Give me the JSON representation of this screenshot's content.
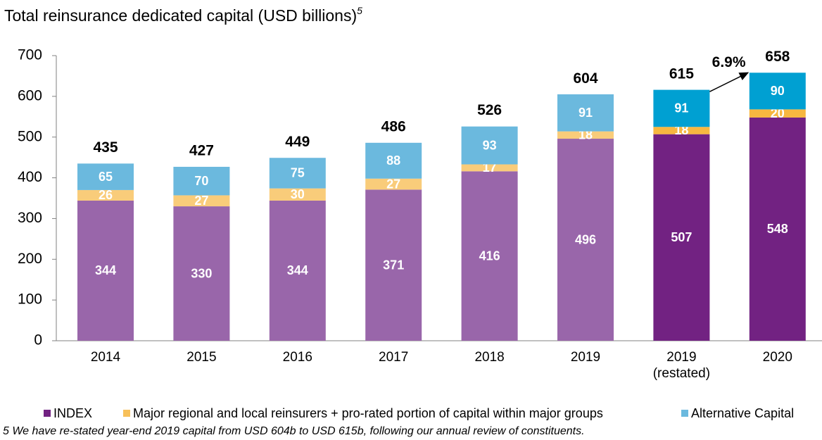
{
  "chart_data": {
    "type": "stacked_bar",
    "title": "Total reinsurance dedicated capital (USD billions)",
    "title_note": "5",
    "categories": [
      "2014",
      "2015",
      "2016",
      "2017",
      "2018",
      "2019",
      "2019 (restated)",
      "2020"
    ],
    "series": [
      {
        "name": "INDEX",
        "color": "#722282",
        "bar_colors": [
          "#9966aa",
          "#9966aa",
          "#9966aa",
          "#9966aa",
          "#9966aa",
          "#9966aa",
          "#722282",
          "#722282"
        ],
        "values": [
          344,
          330,
          344,
          371,
          416,
          496,
          507,
          548
        ]
      },
      {
        "name": "Major regional and local reinsurers + pro-rated portion of capital within major groups",
        "color": "#f7c05a",
        "bar_colors": [
          "#f9cc7a",
          "#f9cc7a",
          "#f9cc7a",
          "#f9cc7a",
          "#f9cc7a",
          "#f9cc7a",
          "#f7b740",
          "#f7b740"
        ],
        "values": [
          26,
          27,
          30,
          27,
          17,
          18,
          18,
          20
        ]
      },
      {
        "name": "Alternative Capital",
        "color": "#6bb9de",
        "bar_colors": [
          "#6bb9de",
          "#6bb9de",
          "#6bb9de",
          "#6bb9de",
          "#6bb9de",
          "#6bb9de",
          "#00a0d2",
          "#00a0d2"
        ],
        "values": [
          65,
          70,
          75,
          88,
          93,
          91,
          91,
          90
        ]
      }
    ],
    "totals": [
      435,
      427,
      449,
      486,
      526,
      604,
      615,
      658
    ],
    "annotation": "6.9%",
    "ylim": [
      0,
      700
    ],
    "yticks": [
      0,
      100,
      200,
      300,
      400,
      500,
      600,
      700
    ],
    "grid": false,
    "footnote": "5 We have re-stated year-end 2019 capital from USD 604b to USD 615b, following our annual review of constituents."
  }
}
